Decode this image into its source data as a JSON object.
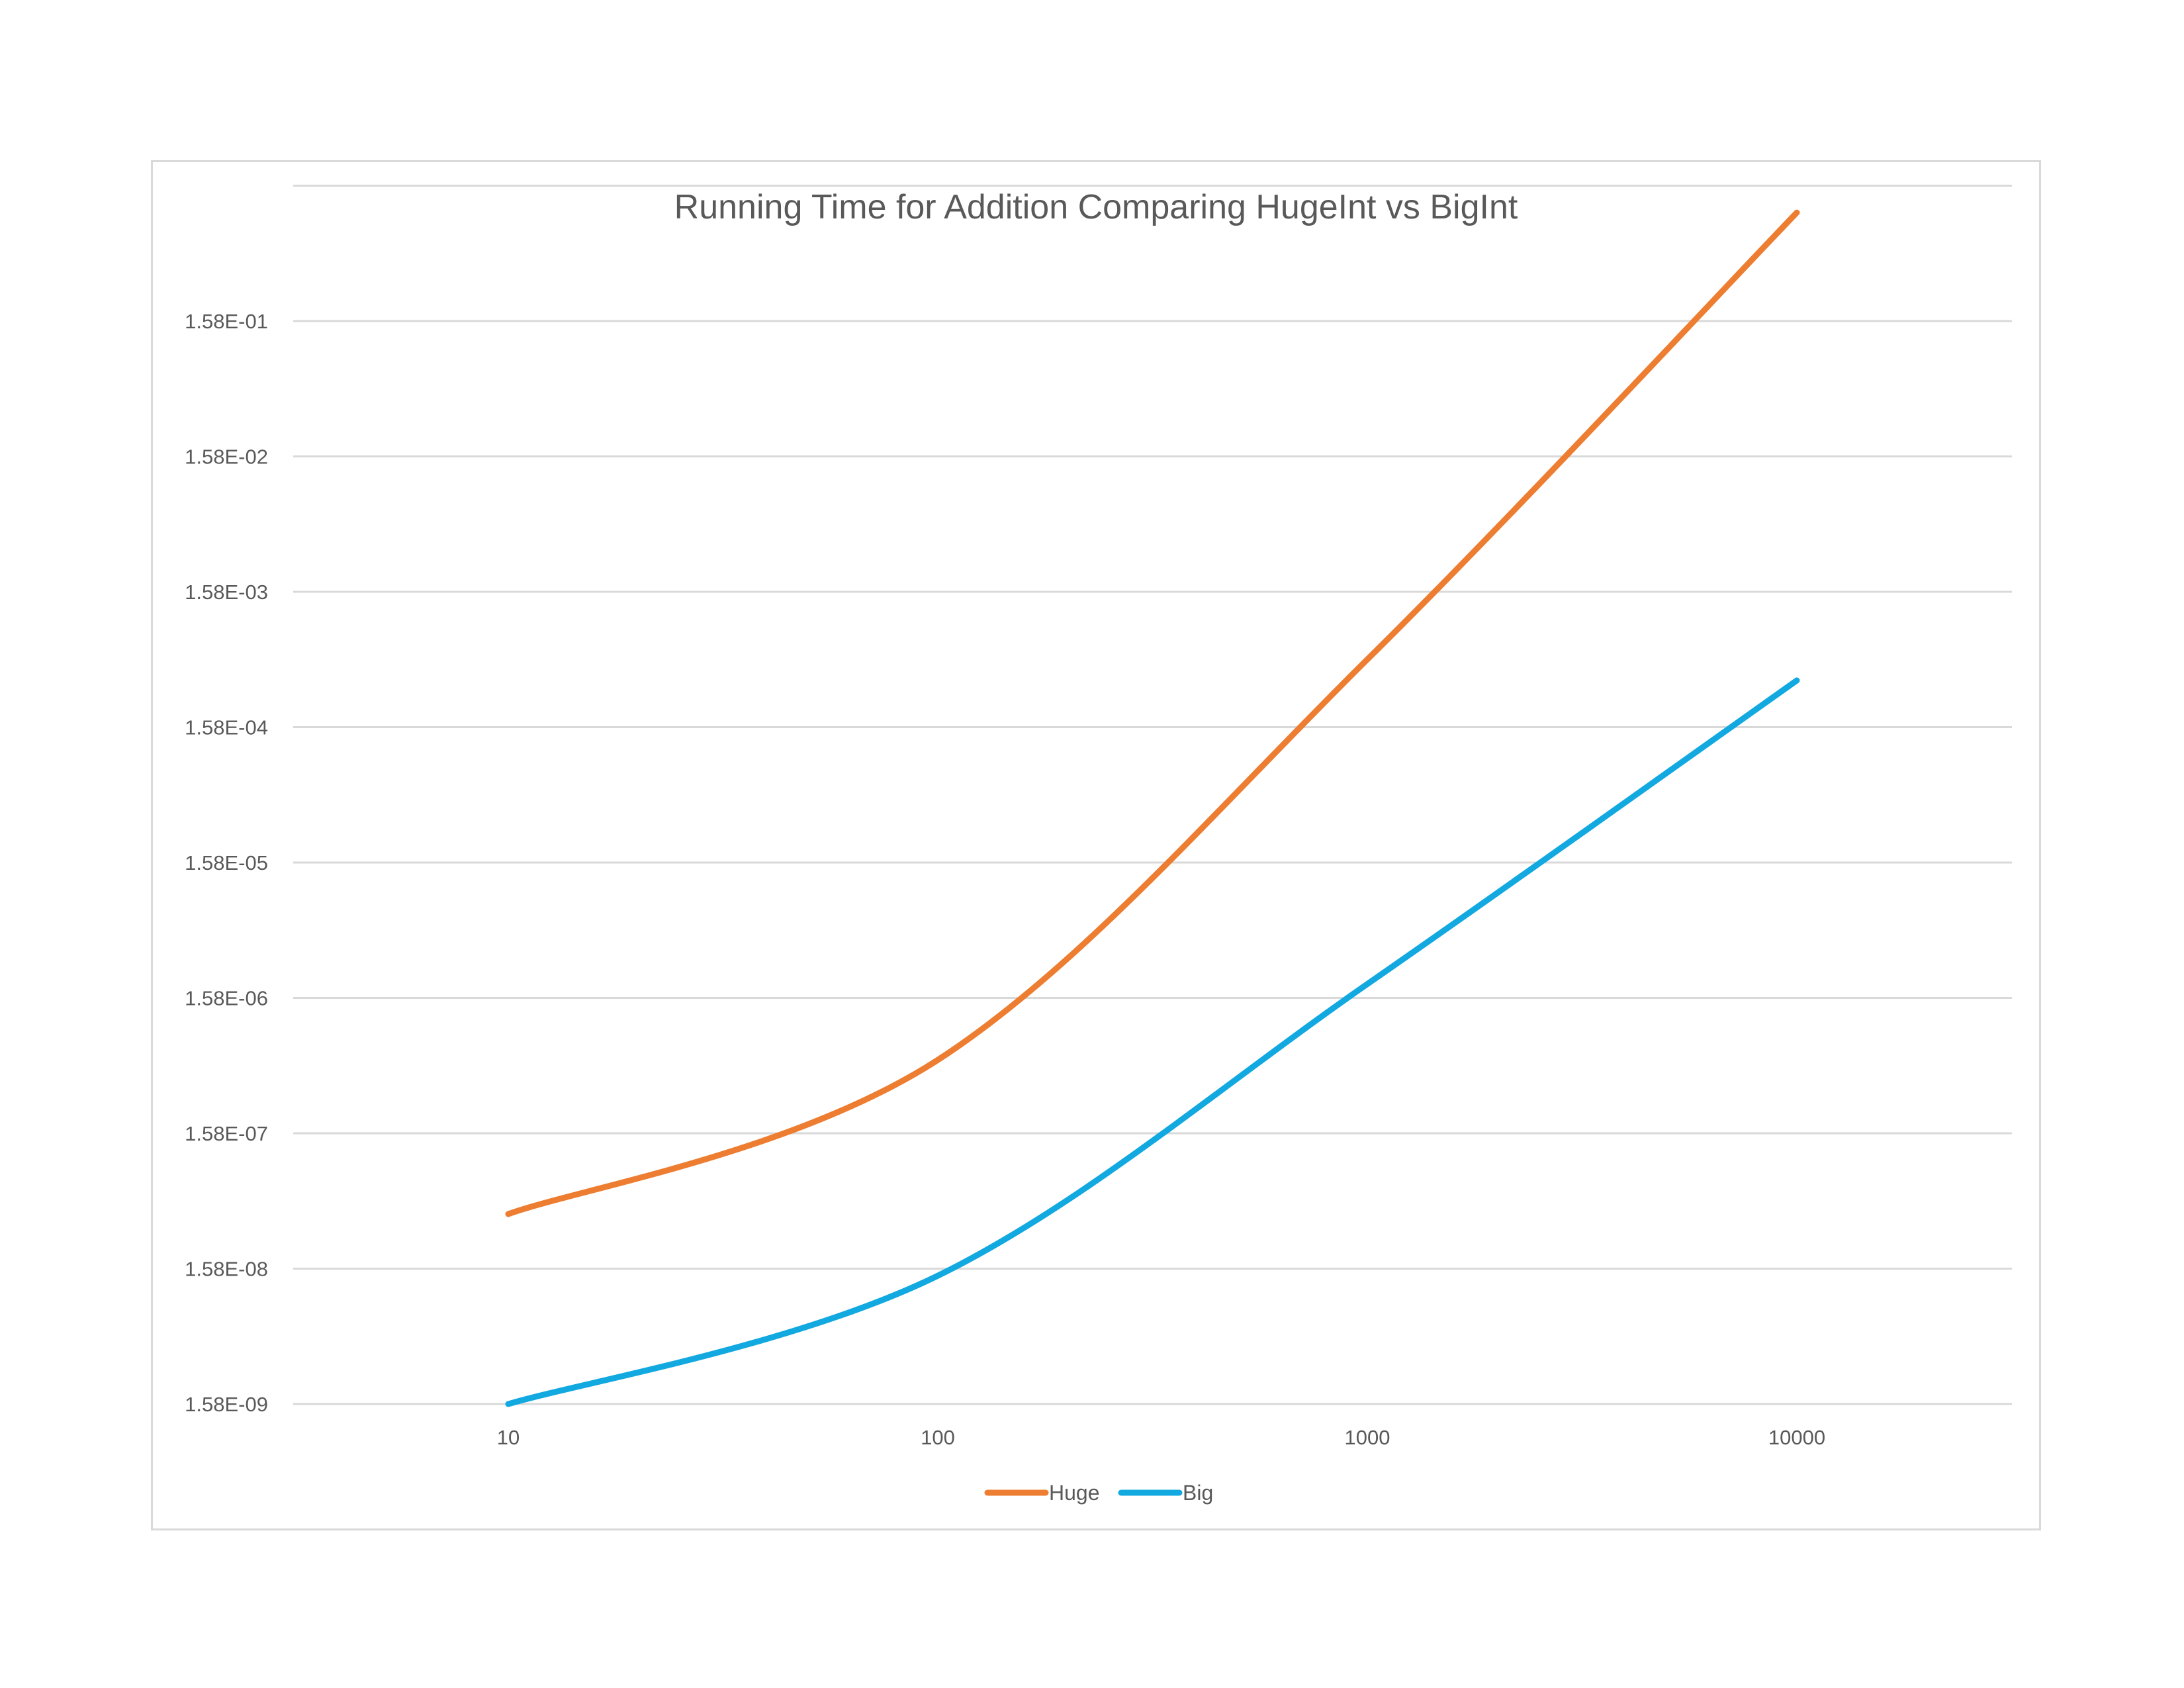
{
  "chart_data": {
    "type": "line",
    "title": "Running Time for Addition Comparing HugeInt vs BigInt",
    "x_scale": "log",
    "y_scale": "log",
    "x": [
      10,
      100,
      1000,
      10000
    ],
    "x_tick_labels": [
      "10",
      "100",
      "1000",
      "10000"
    ],
    "y_tick_labels": [
      "1.58E-09",
      "1.58E-08",
      "1.58E-07",
      "1.58E-06",
      "1.58E-05",
      "1.58E-04",
      "1.58E-03",
      "1.58E-02",
      "1.58E-01"
    ],
    "ylim": [
      1.58e-09,
      1.0
    ],
    "grid": true,
    "legend_position": "bottom",
    "series": [
      {
        "name": "Huge",
        "color": "#ed7d31",
        "values": [
          4e-08,
          5.5e-07,
          0.0005,
          1.0
        ]
      },
      {
        "name": "Big",
        "color": "#12a8e0",
        "values": [
          1.58e-09,
          1.4e-08,
          2e-06,
          0.00035
        ]
      }
    ]
  }
}
